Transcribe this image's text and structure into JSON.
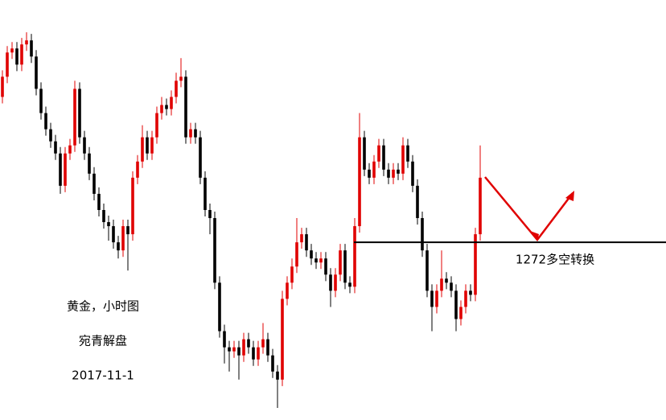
{
  "chart_data": {
    "type": "candlestick",
    "up_color": "#e00000",
    "down_color": "#000000",
    "ylim": [
      1250,
      1302
    ],
    "level": 1272,
    "level_label": "1272多空转换",
    "level_color": "#000000",
    "notes": [
      "黄金，小时图",
      "宛青解盘",
      "2017-11-1"
    ],
    "candles": [
      [
        1290,
        1293.3,
        1289.2,
        1292.5
      ],
      [
        1292.5,
        1296.3,
        1291.7,
        1295.5
      ],
      [
        1295.5,
        1296.8,
        1294.7,
        1296
      ],
      [
        1296,
        1296.8,
        1293.2,
        1294
      ],
      [
        1294,
        1297.3,
        1293.2,
        1296.5
      ],
      [
        1296.5,
        1298,
        1295.7,
        1297
      ],
      [
        1297,
        1297.8,
        1294.2,
        1295
      ],
      [
        1295,
        1295.8,
        1290.2,
        1291
      ],
      [
        1291,
        1291.8,
        1287.2,
        1288
      ],
      [
        1288,
        1288.8,
        1285.2,
        1286
      ],
      [
        1286,
        1286.8,
        1283.7,
        1284.5
      ],
      [
        1284.5,
        1285.3,
        1282.2,
        1283
      ],
      [
        1283,
        1283.8,
        1278,
        1279
      ],
      [
        1279,
        1283.8,
        1278.2,
        1283
      ],
      [
        1283,
        1284.8,
        1282.2,
        1284
      ],
      [
        1284,
        1292,
        1283.2,
        1291
      ],
      [
        1291,
        1291.8,
        1284.2,
        1285
      ],
      [
        1285,
        1285.8,
        1282.2,
        1283
      ],
      [
        1283,
        1283.8,
        1279.7,
        1280.5
      ],
      [
        1280.5,
        1281.3,
        1277.2,
        1278
      ],
      [
        1278,
        1278.8,
        1275.2,
        1276
      ],
      [
        1276,
        1276.8,
        1273.7,
        1274.5
      ],
      [
        1274.5,
        1275.3,
        1272.2,
        1274
      ],
      [
        1274,
        1274.8,
        1271.2,
        1272
      ],
      [
        1272,
        1272.8,
        1270,
        1271
      ],
      [
        1271,
        1274.8,
        1270.2,
        1274
      ],
      [
        1274,
        1274.8,
        1268.5,
        1273
      ],
      [
        1273,
        1280.8,
        1272.2,
        1280
      ],
      [
        1280,
        1282.8,
        1279.2,
        1282
      ],
      [
        1282,
        1286.5,
        1281.2,
        1285
      ],
      [
        1285,
        1285.8,
        1282.2,
        1283
      ],
      [
        1283,
        1285.8,
        1282.2,
        1285
      ],
      [
        1285,
        1288.8,
        1284.2,
        1288
      ],
      [
        1288,
        1290,
        1287.2,
        1289
      ],
      [
        1289,
        1289.8,
        1287.7,
        1288.5
      ],
      [
        1288.5,
        1290.8,
        1287.7,
        1290
      ],
      [
        1290,
        1293,
        1289.2,
        1292
      ],
      [
        1292,
        1294.8,
        1291.2,
        1292.5
      ],
      [
        1292.5,
        1293.3,
        1284.2,
        1285
      ],
      [
        1285,
        1286.8,
        1284.2,
        1286
      ],
      [
        1286,
        1286.8,
        1284.2,
        1285
      ],
      [
        1285,
        1285.8,
        1279.2,
        1280
      ],
      [
        1280,
        1280.8,
        1275.2,
        1276
      ],
      [
        1276,
        1276.8,
        1273,
        1275
      ],
      [
        1275,
        1275.8,
        1266.2,
        1267
      ],
      [
        1267,
        1267.8,
        1260.2,
        1261
      ],
      [
        1261,
        1261.8,
        1257,
        1259
      ],
      [
        1259,
        1259.8,
        1256,
        1258.5
      ],
      [
        1258.5,
        1259.8,
        1257.7,
        1259
      ],
      [
        1259,
        1259.8,
        1255,
        1258
      ],
      [
        1258,
        1260.8,
        1257.2,
        1260
      ],
      [
        1260,
        1260.8,
        1258.2,
        1259
      ],
      [
        1259,
        1259.8,
        1256.7,
        1257.5
      ],
      [
        1257.5,
        1259.8,
        1256.7,
        1259
      ],
      [
        1259,
        1262,
        1258.2,
        1260
      ],
      [
        1260,
        1260.8,
        1257.2,
        1258
      ],
      [
        1258,
        1258.8,
        1255.2,
        1256
      ],
      [
        1256,
        1256.8,
        1251.5,
        1255
      ],
      [
        1255,
        1266,
        1254.2,
        1265
      ],
      [
        1265,
        1267.8,
        1264.2,
        1267
      ],
      [
        1267,
        1270,
        1266.2,
        1269
      ],
      [
        1269,
        1275,
        1268.2,
        1272
      ],
      [
        1272,
        1273.8,
        1271.2,
        1273
      ],
      [
        1273,
        1273.8,
        1270.2,
        1271
      ],
      [
        1271,
        1271.8,
        1269.2,
        1270
      ],
      [
        1270,
        1270.8,
        1268.7,
        1269.5
      ],
      [
        1269.5,
        1270.8,
        1268.7,
        1270
      ],
      [
        1270,
        1270.8,
        1267.2,
        1268
      ],
      [
        1268,
        1268.8,
        1264,
        1266
      ],
      [
        1266,
        1268.8,
        1265.2,
        1268
      ],
      [
        1268,
        1271.8,
        1267.2,
        1271
      ],
      [
        1271,
        1271.8,
        1266.2,
        1267
      ],
      [
        1267,
        1267.8,
        1265.7,
        1266.5
      ],
      [
        1266.5,
        1275,
        1265.7,
        1274
      ],
      [
        1274,
        1288,
        1273.2,
        1285
      ],
      [
        1285,
        1285.8,
        1280.2,
        1281
      ],
      [
        1281,
        1281.8,
        1279.2,
        1280
      ],
      [
        1280,
        1282.8,
        1279.2,
        1282
      ],
      [
        1282,
        1284.8,
        1281.2,
        1284
      ],
      [
        1284,
        1284.8,
        1280.2,
        1281
      ],
      [
        1281,
        1281.8,
        1279.2,
        1280
      ],
      [
        1280,
        1281.8,
        1279.2,
        1281
      ],
      [
        1281,
        1281.8,
        1279.7,
        1280.5
      ],
      [
        1280.5,
        1285,
        1279.7,
        1284
      ],
      [
        1284,
        1284.8,
        1281.2,
        1282
      ],
      [
        1282,
        1282.8,
        1278.2,
        1279
      ],
      [
        1279,
        1279.8,
        1274.2,
        1275
      ],
      [
        1275,
        1275.8,
        1270.2,
        1271
      ],
      [
        1271,
        1271.8,
        1265.2,
        1266
      ],
      [
        1266,
        1266.8,
        1261,
        1264
      ],
      [
        1264,
        1266.8,
        1263.2,
        1266
      ],
      [
        1266,
        1271,
        1265.2,
        1267.5
      ],
      [
        1267.5,
        1268.3,
        1266.2,
        1267
      ],
      [
        1267,
        1267.8,
        1265.2,
        1266
      ],
      [
        1266,
        1266.8,
        1261,
        1262.5
      ],
      [
        1262.5,
        1264.8,
        1261.7,
        1264
      ],
      [
        1264,
        1266.8,
        1263.2,
        1266
      ],
      [
        1266,
        1266.8,
        1264.7,
        1265.5
      ],
      [
        1265.5,
        1273.8,
        1264.7,
        1273
      ],
      [
        1273,
        1284,
        1272.2,
        1280
      ]
    ]
  }
}
